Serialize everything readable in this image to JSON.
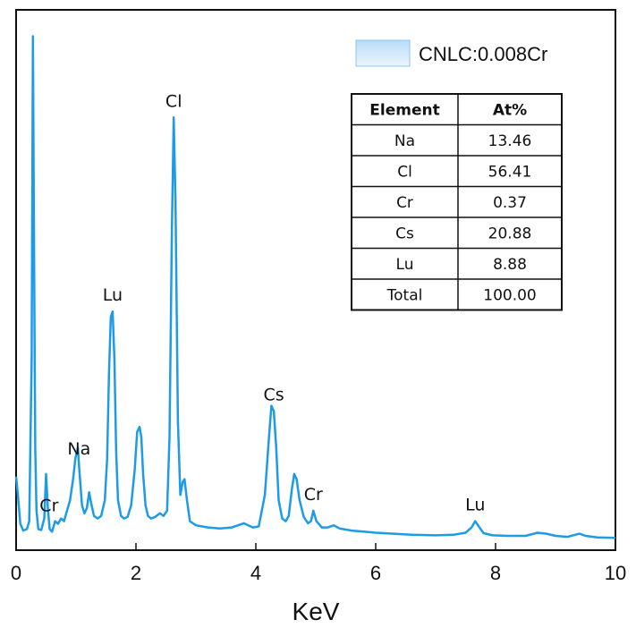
{
  "chart_data": {
    "type": "line",
    "title": "",
    "xlabel": "KeV",
    "ylabel": "",
    "xlim": [
      0,
      10
    ],
    "ylim": [
      0,
      100
    ],
    "x_ticks": [
      "0",
      "2",
      "4",
      "6",
      "8",
      "10"
    ],
    "y_ticks": [],
    "grid": false,
    "legend_position": "top-right",
    "line_color": "#1e9be6",
    "series": [
      {
        "name": "CNLC:0.008Cr",
        "x": [
          0.0,
          0.03,
          0.07,
          0.12,
          0.18,
          0.22,
          0.26,
          0.28,
          0.3,
          0.32,
          0.34,
          0.37,
          0.42,
          0.47,
          0.5,
          0.53,
          0.56,
          0.6,
          0.65,
          0.7,
          0.75,
          0.8,
          0.85,
          0.9,
          0.95,
          0.99,
          1.03,
          1.06,
          1.1,
          1.14,
          1.18,
          1.22,
          1.25,
          1.3,
          1.36,
          1.42,
          1.48,
          1.52,
          1.55,
          1.58,
          1.61,
          1.64,
          1.67,
          1.7,
          1.75,
          1.8,
          1.86,
          1.92,
          1.98,
          2.02,
          2.06,
          2.09,
          2.12,
          2.16,
          2.2,
          2.25,
          2.32,
          2.4,
          2.46,
          2.52,
          2.56,
          2.6,
          2.63,
          2.66,
          2.7,
          2.74,
          2.78,
          2.81,
          2.85,
          2.9,
          3.0,
          3.2,
          3.4,
          3.6,
          3.8,
          3.95,
          4.05,
          4.15,
          4.22,
          4.26,
          4.3,
          4.34,
          4.38,
          4.44,
          4.5,
          4.55,
          4.6,
          4.64,
          4.68,
          4.73,
          4.8,
          4.87,
          4.92,
          4.96,
          5.01,
          5.1,
          5.2,
          5.3,
          5.4,
          5.6,
          5.8,
          6.0,
          6.3,
          6.6,
          7.0,
          7.3,
          7.5,
          7.6,
          7.66,
          7.72,
          7.8,
          7.95,
          8.2,
          8.5,
          8.7,
          8.85,
          9.0,
          9.2,
          9.4,
          9.5,
          9.7,
          10.0
        ],
        "y": [
          12.5,
          9.0,
          3.5,
          2.2,
          2.5,
          4.0,
          35.0,
          96.5,
          55.0,
          18.0,
          6.0,
          2.5,
          2.3,
          4.5,
          13.0,
          6.5,
          2.5,
          2.0,
          4.0,
          3.5,
          4.5,
          4.0,
          6.0,
          8.0,
          12.0,
          16.0,
          18.0,
          13.0,
          7.0,
          5.5,
          6.5,
          9.5,
          7.5,
          5.0,
          4.5,
          5.0,
          8.0,
          16.0,
          32.0,
          43.0,
          44.0,
          35.0,
          17.0,
          8.0,
          5.0,
          4.5,
          4.8,
          7.0,
          14.0,
          21.0,
          22.0,
          20.0,
          13.0,
          7.0,
          5.0,
          4.5,
          4.8,
          5.5,
          5.0,
          6.0,
          20.0,
          60.0,
          81.0,
          65.0,
          23.0,
          9.0,
          11.5,
          12.0,
          8.0,
          4.0,
          3.2,
          2.8,
          2.6,
          2.8,
          3.6,
          2.8,
          3.0,
          9.0,
          20.0,
          26.0,
          25.0,
          18.0,
          8.0,
          4.5,
          4.0,
          5.0,
          10.0,
          13.0,
          12.0,
          8.0,
          4.8,
          3.6,
          4.0,
          6.0,
          4.0,
          2.8,
          2.8,
          3.2,
          2.6,
          2.2,
          2.0,
          1.8,
          1.6,
          1.4,
          1.3,
          1.4,
          1.8,
          2.8,
          4.0,
          3.0,
          1.7,
          1.3,
          1.2,
          1.2,
          1.8,
          1.6,
          1.2,
          1.0,
          1.6,
          1.2,
          0.9,
          0.8
        ]
      }
    ],
    "annotations": [
      {
        "text": "Cr",
        "x": 0.55
      },
      {
        "text": "Na",
        "x": 1.05
      },
      {
        "text": "Lu",
        "x": 1.61
      },
      {
        "text": "Cl",
        "x": 2.63
      },
      {
        "text": "Cs",
        "x": 4.3
      },
      {
        "text": "Cr",
        "x": 4.96
      },
      {
        "text": "Lu",
        "x": 7.66
      }
    ],
    "table": {
      "headers": [
        "Element",
        "At%"
      ],
      "rows": [
        [
          "Na",
          "13.46"
        ],
        [
          "Cl",
          "56.41"
        ],
        [
          "Cr",
          "0.37"
        ],
        [
          "Cs",
          "20.88"
        ],
        [
          "Lu",
          "8.88"
        ],
        [
          "Total",
          "100.00"
        ]
      ]
    }
  }
}
